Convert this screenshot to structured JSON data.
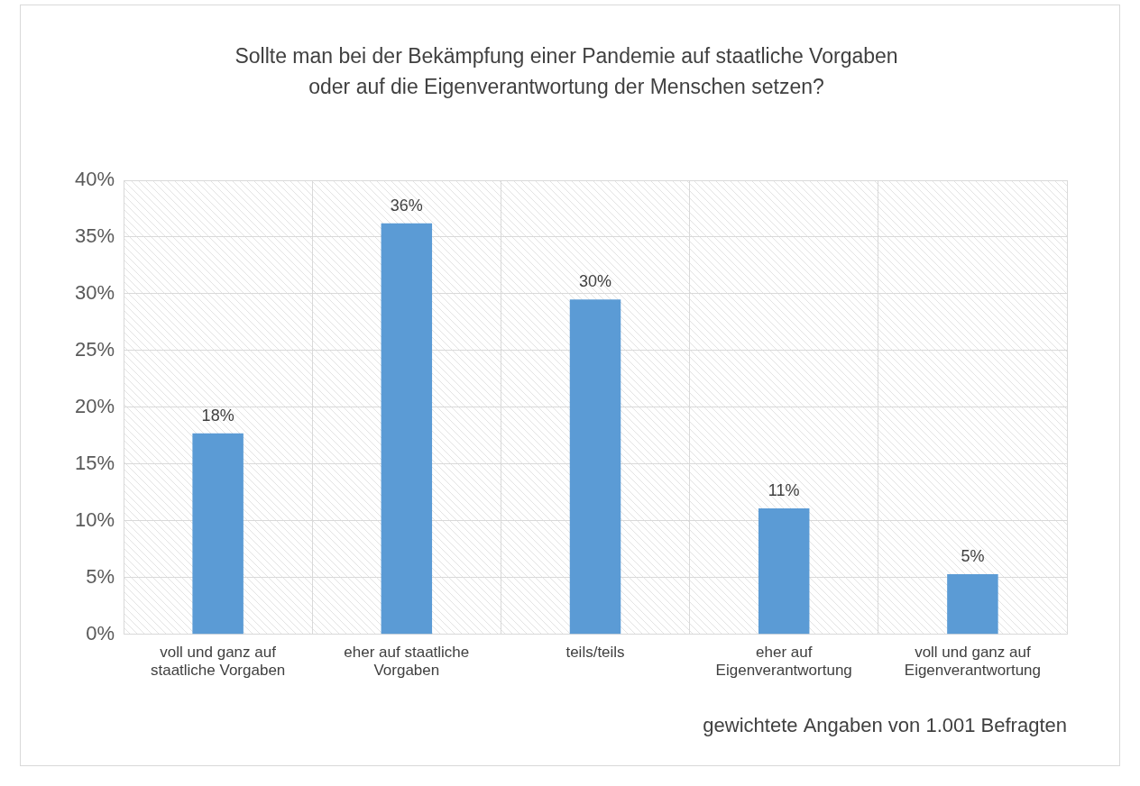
{
  "chart_data": {
    "type": "bar",
    "title": "Sollte man bei der Bekämpfung einer Pandemie auf staatliche Vorgaben oder auf die Eigenverantwortung der Menschen setzen?",
    "categories": [
      "voll und ganz auf staatliche Vorgaben",
      "eher auf staatliche Vorgaben",
      "teils/teils",
      "eher auf Eigenverantwortung",
      "voll und ganz auf Eigenverantwortung"
    ],
    "values": [
      17.7,
      36.2,
      29.5,
      11.1,
      5.3
    ],
    "value_labels": [
      "18%",
      "36%",
      "30%",
      "11%",
      "5%"
    ],
    "color": "#5b9bd5",
    "ylim": [
      0,
      40
    ],
    "yticks": [
      {
        "value": 0,
        "label": "0%"
      },
      {
        "value": 5,
        "label": "5%"
      },
      {
        "value": 10,
        "label": "10%"
      },
      {
        "value": 15,
        "label": "15%"
      },
      {
        "value": 20,
        "label": "20%"
      },
      {
        "value": 25,
        "label": "25%"
      },
      {
        "value": 30,
        "label": "30%"
      },
      {
        "value": 35,
        "label": "35%"
      },
      {
        "value": 40,
        "label": "40%"
      }
    ],
    "grid": true,
    "data_labels": true,
    "annotations": [
      "gewichtete Angaben von 1.001 Befragten"
    ]
  }
}
